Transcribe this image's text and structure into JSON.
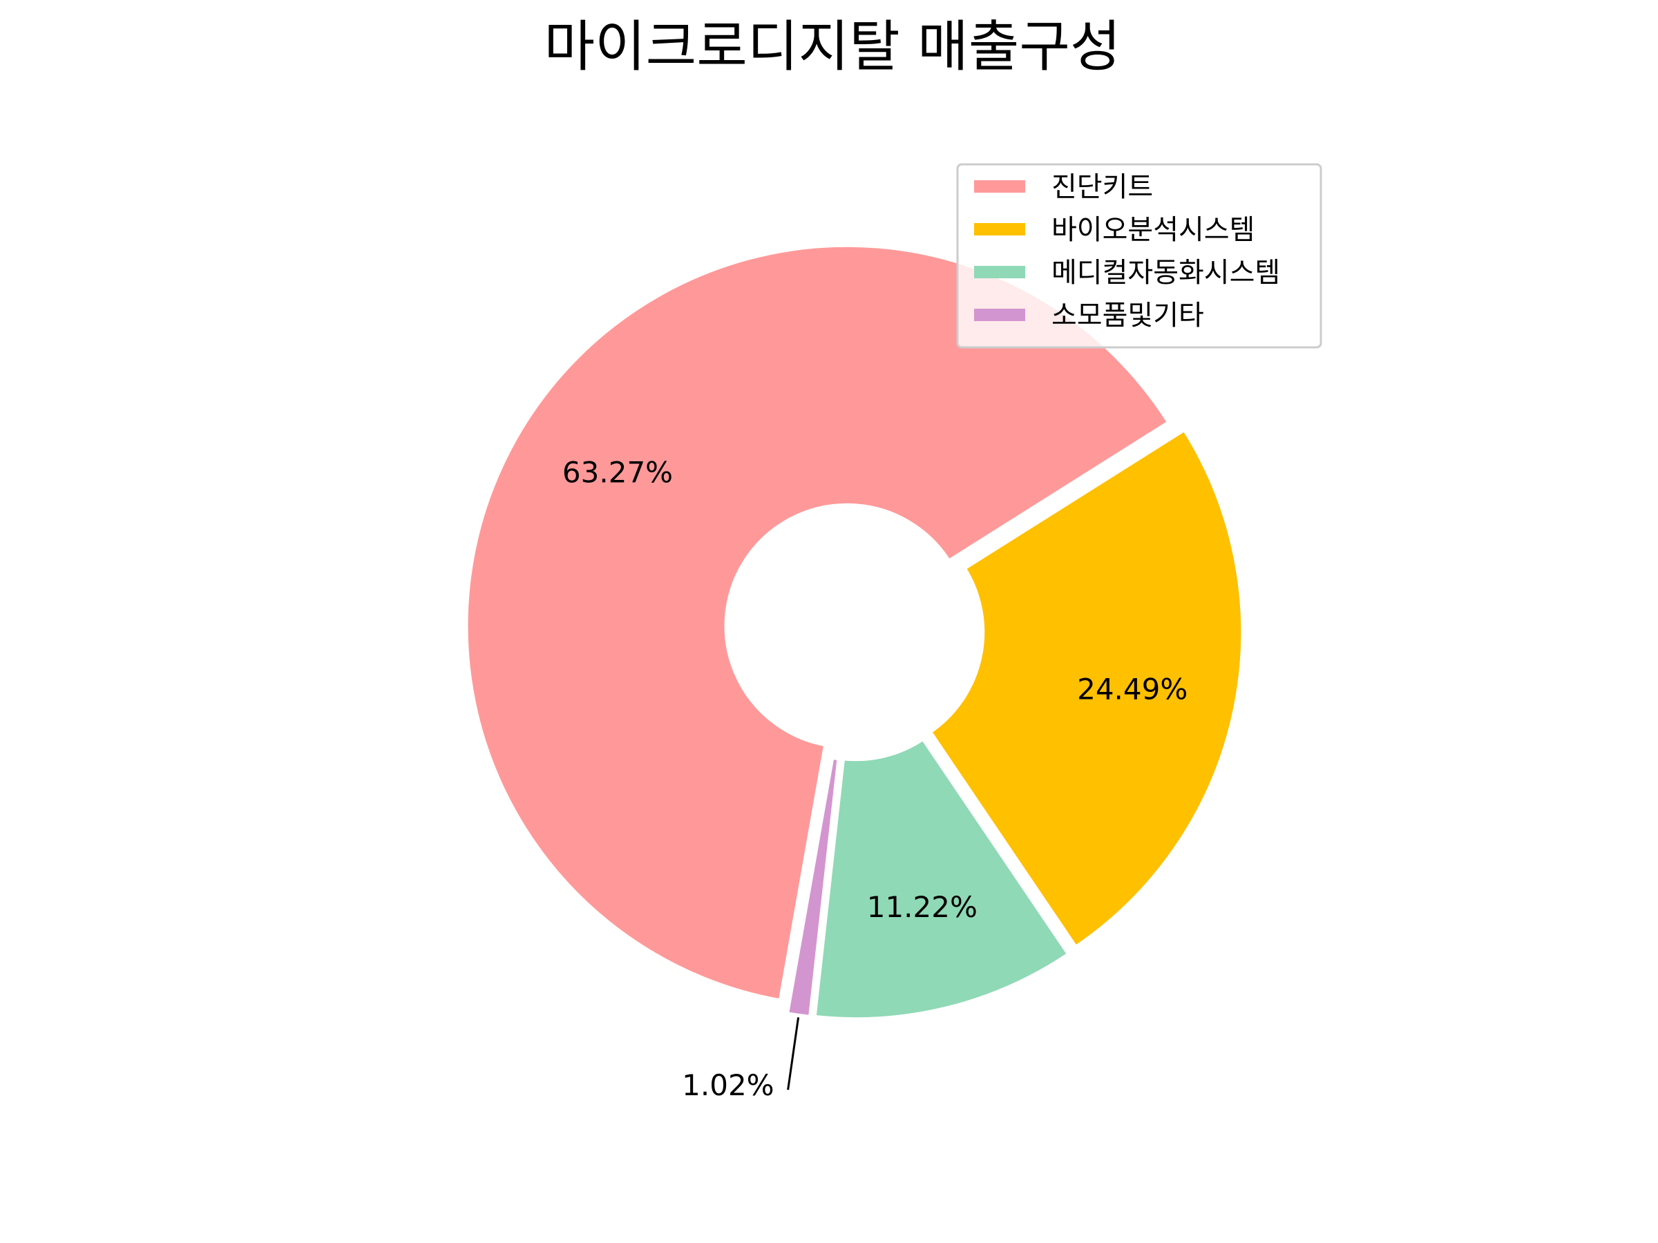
{
  "chart_data": {
    "type": "pie",
    "style": "donut",
    "title": "마이크로디지탈 매출구성",
    "categories": [
      "진단키트",
      "바이오분석시스템",
      "메디컬자동화시스템",
      "소모품및기타"
    ],
    "values": [
      63.27,
      24.49,
      11.22,
      1.02
    ],
    "labels": [
      "63.27%",
      "24.49%",
      "11.22%",
      "1.02%"
    ],
    "colors": [
      "#ff9999",
      "#ffc000",
      "#8fd9b6",
      "#d395d0"
    ],
    "start_angle_deg": 260,
    "direction": "clockwise",
    "legend_position": "upper-right",
    "exploded": true
  }
}
